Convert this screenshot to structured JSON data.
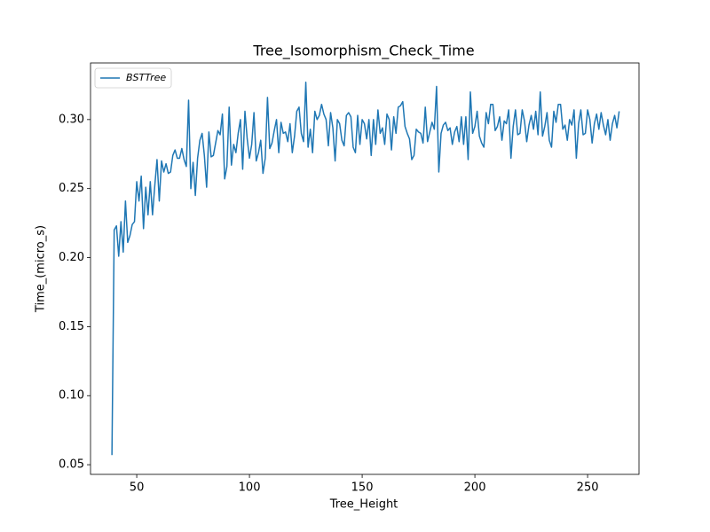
{
  "chart_data": {
    "type": "line",
    "title": "Tree_Isomorphism_Check_Time",
    "xlabel": "Tree_Height",
    "ylabel": "Time_(micro_s)",
    "x": [
      39,
      40,
      41,
      42,
      43,
      44,
      45,
      46,
      47,
      48,
      49,
      50,
      51,
      52,
      53,
      54,
      55,
      56,
      57,
      58,
      59,
      60,
      61,
      62,
      63,
      64,
      65,
      66,
      67,
      68,
      69,
      70,
      71,
      72,
      73,
      74,
      75,
      76,
      77,
      78,
      79,
      80,
      81,
      82,
      83,
      84,
      85,
      86,
      87,
      88,
      89,
      90,
      91,
      92,
      93,
      94,
      95,
      96,
      97,
      98,
      99,
      100,
      101,
      102,
      103,
      104,
      105,
      106,
      107,
      108,
      109,
      110,
      111,
      112,
      113,
      114,
      115,
      116,
      117,
      118,
      119,
      120,
      121,
      122,
      123,
      124,
      125,
      126,
      127,
      128,
      129,
      130,
      131,
      132,
      133,
      134,
      135,
      136,
      137,
      138,
      139,
      140,
      141,
      142,
      143,
      144,
      145,
      146,
      147,
      148,
      149,
      150,
      151,
      152,
      153,
      154,
      155,
      156,
      157,
      158,
      159,
      160,
      161,
      162,
      163,
      164,
      165,
      166,
      167,
      168,
      169,
      170,
      171,
      172,
      173,
      174,
      175,
      176,
      177,
      178,
      179,
      180,
      181,
      182,
      183,
      184,
      185,
      186,
      187,
      188,
      189,
      190,
      191,
      192,
      193,
      194,
      195,
      196,
      197,
      198,
      199,
      200,
      201,
      202,
      203,
      204,
      205,
      206,
      207,
      208,
      209,
      210,
      211,
      212,
      213,
      214,
      215,
      216,
      217,
      218,
      219,
      220,
      221,
      222,
      223,
      224,
      225,
      226,
      227,
      228,
      229,
      230,
      231,
      232,
      233,
      234,
      235,
      236,
      237,
      238,
      239,
      240,
      241,
      242,
      243,
      244,
      245,
      246,
      247,
      248,
      249,
      250,
      251,
      252,
      253,
      254,
      255,
      256,
      257,
      258,
      259,
      260,
      261,
      262,
      263,
      264
    ],
    "series": [
      {
        "name": "BSTTree",
        "color": "#1f77b4",
        "values": [
          0.057,
          0.22,
          0.223,
          0.201,
          0.226,
          0.204,
          0.241,
          0.211,
          0.216,
          0.224,
          0.226,
          0.255,
          0.241,
          0.259,
          0.221,
          0.251,
          0.231,
          0.255,
          0.231,
          0.252,
          0.271,
          0.241,
          0.27,
          0.262,
          0.268,
          0.261,
          0.262,
          0.274,
          0.278,
          0.272,
          0.272,
          0.279,
          0.271,
          0.266,
          0.314,
          0.25,
          0.269,
          0.245,
          0.272,
          0.285,
          0.29,
          0.274,
          0.251,
          0.291,
          0.273,
          0.274,
          0.283,
          0.292,
          0.289,
          0.304,
          0.257,
          0.266,
          0.309,
          0.267,
          0.282,
          0.276,
          0.29,
          0.3,
          0.264,
          0.306,
          0.286,
          0.272,
          0.282,
          0.305,
          0.27,
          0.276,
          0.285,
          0.261,
          0.272,
          0.316,
          0.279,
          0.283,
          0.292,
          0.3,
          0.276,
          0.298,
          0.29,
          0.291,
          0.284,
          0.297,
          0.276,
          0.288,
          0.306,
          0.309,
          0.29,
          0.284,
          0.327,
          0.28,
          0.293,
          0.276,
          0.306,
          0.3,
          0.303,
          0.311,
          0.304,
          0.3,
          0.281,
          0.305,
          0.294,
          0.27,
          0.3,
          0.297,
          0.285,
          0.281,
          0.303,
          0.305,
          0.302,
          0.28,
          0.276,
          0.303,
          0.282,
          0.3,
          0.297,
          0.286,
          0.3,
          0.274,
          0.3,
          0.282,
          0.307,
          0.29,
          0.294,
          0.282,
          0.304,
          0.3,
          0.278,
          0.302,
          0.29,
          0.309,
          0.31,
          0.313,
          0.295,
          0.29,
          0.286,
          0.271,
          0.274,
          0.293,
          0.291,
          0.29,
          0.283,
          0.309,
          0.284,
          0.291,
          0.298,
          0.293,
          0.324,
          0.262,
          0.29,
          0.296,
          0.298,
          0.292,
          0.294,
          0.282,
          0.291,
          0.295,
          0.284,
          0.302,
          0.282,
          0.302,
          0.271,
          0.32,
          0.29,
          0.295,
          0.306,
          0.288,
          0.283,
          0.28,
          0.305,
          0.297,
          0.311,
          0.311,
          0.292,
          0.295,
          0.302,
          0.285,
          0.299,
          0.297,
          0.307,
          0.272,
          0.295,
          0.307,
          0.289,
          0.29,
          0.307,
          0.299,
          0.284,
          0.296,
          0.303,
          0.293,
          0.306,
          0.289,
          0.32,
          0.288,
          0.295,
          0.305,
          0.285,
          0.28,
          0.306,
          0.298,
          0.311,
          0.311,
          0.293,
          0.296,
          0.285,
          0.3,
          0.296,
          0.307,
          0.272,
          0.297,
          0.307,
          0.289,
          0.29,
          0.307,
          0.3,
          0.283,
          0.297,
          0.304,
          0.293,
          0.305,
          0.296,
          0.289,
          0.3,
          0.285,
          0.297,
          0.303,
          0.294,
          0.306
        ]
      }
    ],
    "xlim": [
      29.5,
      272.8
    ],
    "ylim": [
      0.043,
      0.341
    ],
    "xticks": [
      50,
      100,
      150,
      200,
      250
    ],
    "yticks": [
      0.05,
      {
        "value": 0.1,
        "label": "0.10"
      },
      0.15,
      {
        "value": 0.2,
        "label": "0.20"
      },
      0.25,
      {
        "value": 0.3,
        "label": "0.30"
      }
    ],
    "legend": "upper left"
  }
}
